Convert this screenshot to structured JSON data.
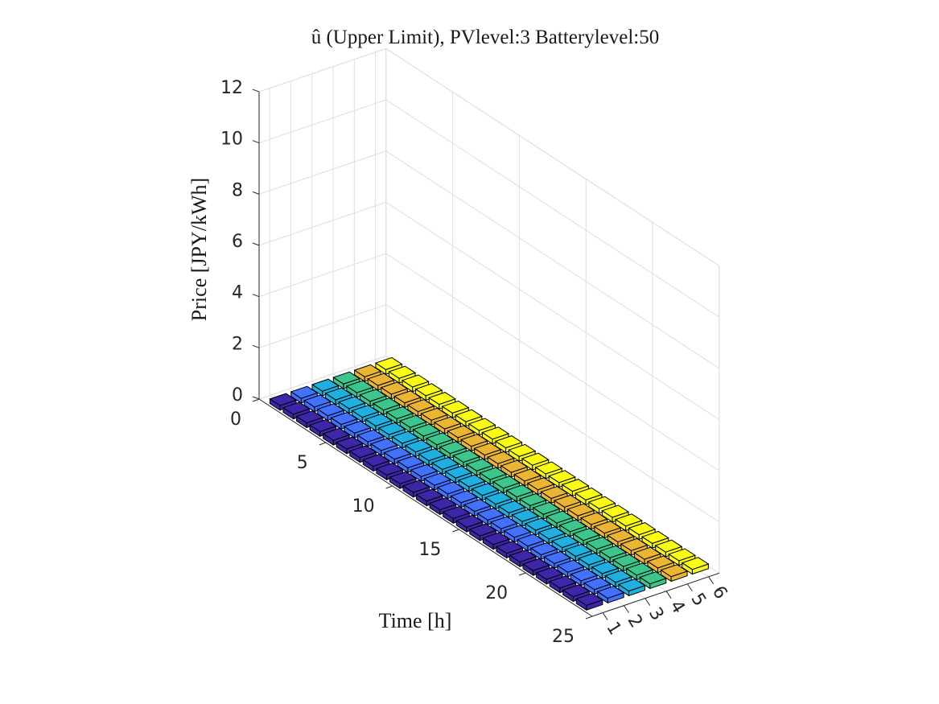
{
  "chart_data": {
    "type": "bar3",
    "title": "û (Upper Limit), PVlevel:3 Batterylevel:50",
    "xlabel": "",
    "ylabel": "Time [h]",
    "zlabel": "Price [JPY/kWh]",
    "x": [
      1,
      2,
      3,
      4,
      5,
      6
    ],
    "y": [
      1,
      2,
      3,
      4,
      5,
      6,
      7,
      8,
      9,
      10,
      11,
      12,
      13,
      14,
      15,
      16,
      17,
      18,
      19,
      20,
      21,
      22,
      23,
      24
    ],
    "xlim": [
      0.5,
      6.5
    ],
    "ylim": [
      0,
      25
    ],
    "zlim": [
      0,
      12
    ],
    "x_ticks": [
      "1",
      "2",
      "3",
      "4",
      "5",
      "6"
    ],
    "y_ticks": [
      "0",
      "5",
      "10",
      "15",
      "20",
      "25"
    ],
    "z_ticks": [
      "0",
      "2",
      "4",
      "6",
      "8",
      "10",
      "12"
    ],
    "series_colors": [
      "#3e26a8",
      "#4271fd",
      "#1fafe0",
      "#3cc68c",
      "#e9b532",
      "#f9fb15"
    ],
    "values_description_default": 0,
    "values": [
      [
        0,
        0,
        0,
        0,
        0,
        0
      ],
      [
        0,
        0,
        0,
        0,
        0,
        0
      ],
      [
        0,
        0,
        0,
        0,
        0,
        0
      ],
      [
        0,
        0,
        0,
        0,
        0,
        0
      ],
      [
        0,
        0,
        0,
        0,
        0,
        0
      ],
      [
        0,
        0,
        0,
        0,
        0,
        0
      ],
      [
        0,
        0,
        0,
        0,
        0,
        0
      ],
      [
        0,
        0,
        0,
        0,
        0,
        0
      ],
      [
        0,
        0,
        0,
        0,
        0,
        0
      ],
      [
        0,
        0,
        0,
        0,
        0,
        0
      ],
      [
        0,
        0,
        0,
        0,
        0,
        0
      ],
      [
        0,
        0,
        0,
        0,
        0,
        0
      ],
      [
        0,
        0,
        0,
        0,
        0,
        0
      ],
      [
        0,
        0,
        0,
        0,
        0,
        0
      ],
      [
        0,
        0,
        0,
        0,
        0,
        0
      ],
      [
        0,
        0,
        0,
        0,
        0,
        0
      ],
      [
        0,
        0,
        0,
        0,
        0,
        0
      ],
      [
        0,
        0,
        0,
        0,
        0,
        0
      ],
      [
        0,
        0,
        0,
        0,
        0,
        0
      ],
      [
        0,
        0,
        0,
        0,
        0,
        0
      ],
      [
        0,
        0,
        0,
        0,
        0,
        0
      ],
      [
        0,
        0,
        0,
        0,
        0,
        0
      ],
      [
        0,
        0,
        0,
        0,
        0,
        0
      ],
      [
        0,
        0,
        0,
        0,
        0,
        0
      ]
    ],
    "grid": true
  }
}
